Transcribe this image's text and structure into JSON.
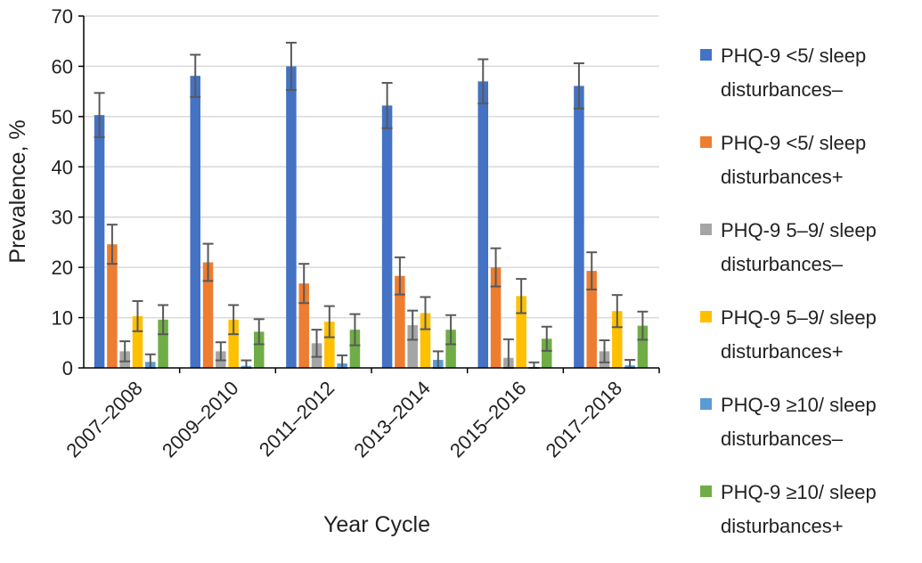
{
  "chart_data": {
    "type": "bar",
    "title": "",
    "xlabel": "Year Cycle",
    "ylabel": "Prevalence, %",
    "ylim": [
      0,
      70
    ],
    "yticks": [
      0,
      10,
      20,
      30,
      40,
      50,
      60,
      70
    ],
    "grid": true,
    "legend_position": "right",
    "categories": [
      "2007–2008",
      "2009–2010",
      "2011–2012",
      "2013–2014",
      "2015–2016",
      "2017–2018"
    ],
    "series": [
      {
        "name": "PHQ-9 <5/ sleep disturbances–",
        "color": "#4472C4",
        "values": [
          50.3,
          58.1,
          60.0,
          52.2,
          57.0,
          56.1
        ],
        "error": [
          4.4,
          4.2,
          4.7,
          4.5,
          4.4,
          4.5
        ]
      },
      {
        "name": "PHQ-9 <5/ sleep disturbances+",
        "color": "#ED7D31",
        "values": [
          24.6,
          21.0,
          16.8,
          18.3,
          20.0,
          19.3
        ],
        "error": [
          3.9,
          3.7,
          3.9,
          3.7,
          3.8,
          3.7
        ]
      },
      {
        "name": "PHQ-9 5–9/ sleep disturbances–",
        "color": "#A5A5A5",
        "values": [
          3.3,
          3.3,
          4.9,
          8.5,
          2.0,
          3.3
        ],
        "error": [
          2.0,
          1.8,
          2.7,
          2.9,
          3.7,
          2.2
        ]
      },
      {
        "name": "PHQ-9 5–9/ sleep disturbances+",
        "color": "#FFC000",
        "values": [
          10.3,
          9.6,
          9.2,
          10.9,
          14.3,
          11.3
        ],
        "error": [
          3.0,
          2.9,
          3.1,
          3.2,
          3.4,
          3.2
        ]
      },
      {
        "name": "PHQ-9 ≥10/ sleep disturbances–",
        "color": "#5B9BD5",
        "values": [
          1.2,
          0.4,
          0.9,
          1.6,
          0.2,
          0.5
        ],
        "error": [
          1.5,
          1.1,
          1.6,
          1.7,
          0.9,
          1.1
        ]
      },
      {
        "name": "PHQ-9 ≥10/ sleep disturbances+",
        "color": "#70AD47",
        "values": [
          9.6,
          7.2,
          7.6,
          7.6,
          5.8,
          8.4
        ],
        "error": [
          2.9,
          2.5,
          3.1,
          2.9,
          2.4,
          2.8
        ]
      }
    ]
  }
}
